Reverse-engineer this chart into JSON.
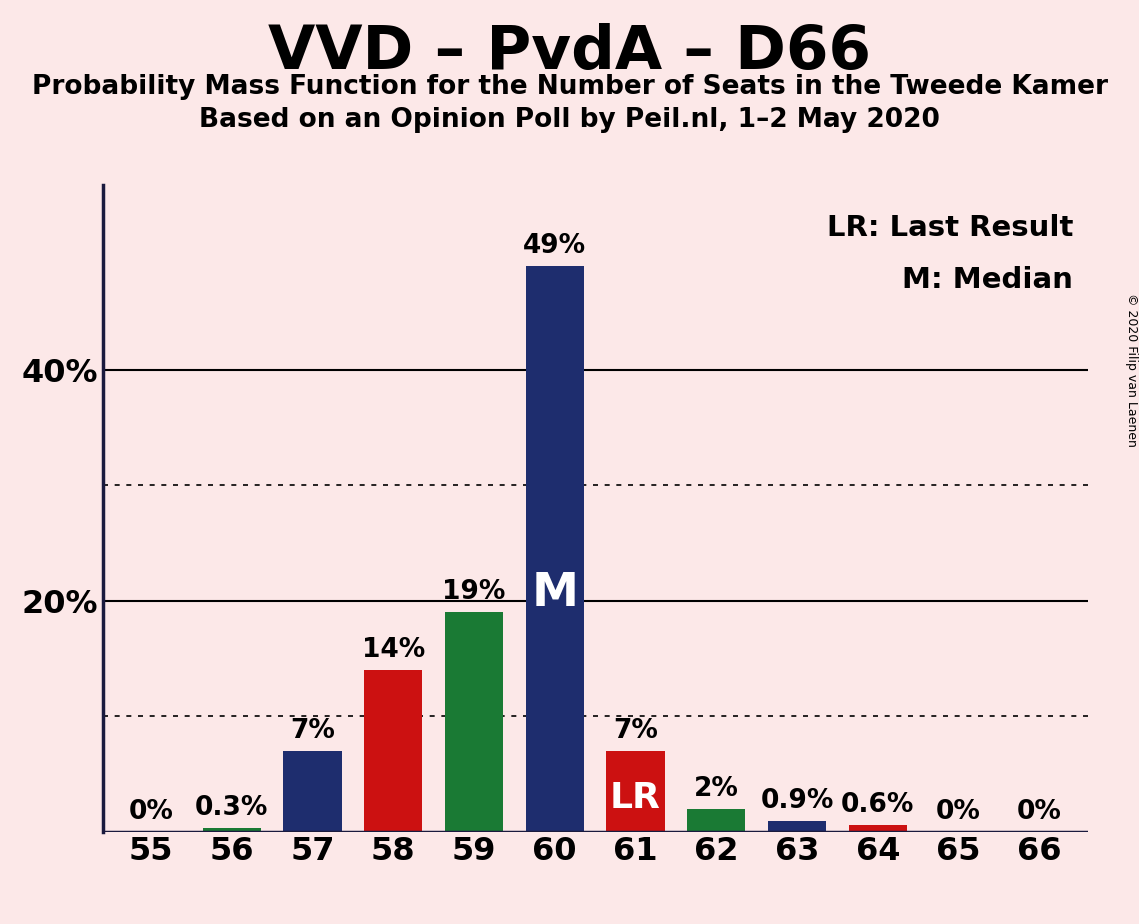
{
  "title": "VVD – PvdA – D66",
  "subtitle1": "Probability Mass Function for the Number of Seats in the Tweede Kamer",
  "subtitle2": "Based on an Opinion Poll by Peil.nl, 1–2 May 2020",
  "copyright": "© 2020 Filip van Laenen",
  "legend_lr": "LR: Last Result",
  "legend_m": "M: Median",
  "seats": [
    55,
    56,
    57,
    58,
    59,
    60,
    61,
    62,
    63,
    64,
    65,
    66
  ],
  "values": [
    0.0,
    0.3,
    7.0,
    14.0,
    19.0,
    49.0,
    7.0,
    2.0,
    0.9,
    0.6,
    0.0,
    0.0
  ],
  "labels": [
    "0%",
    "0.3%",
    "7%",
    "14%",
    "19%",
    "49%",
    "7%",
    "2%",
    "0.9%",
    "0.6%",
    "0%",
    "0%"
  ],
  "bar_colors": [
    "#1e2d6e",
    "#1a7a34",
    "#1e2d6e",
    "#cc1111",
    "#1a7a34",
    "#1e2d6e",
    "#cc1111",
    "#1a7a34",
    "#1e2d6e",
    "#cc1111",
    "#1e2d6e",
    "#cc1111"
  ],
  "median_seat": 60,
  "lr_seat": 61,
  "background_color": "#fce8e8",
  "solid_yticks": [
    20,
    40
  ],
  "dotted_yticks": [
    10,
    30
  ],
  "ylim": [
    0,
    56
  ]
}
